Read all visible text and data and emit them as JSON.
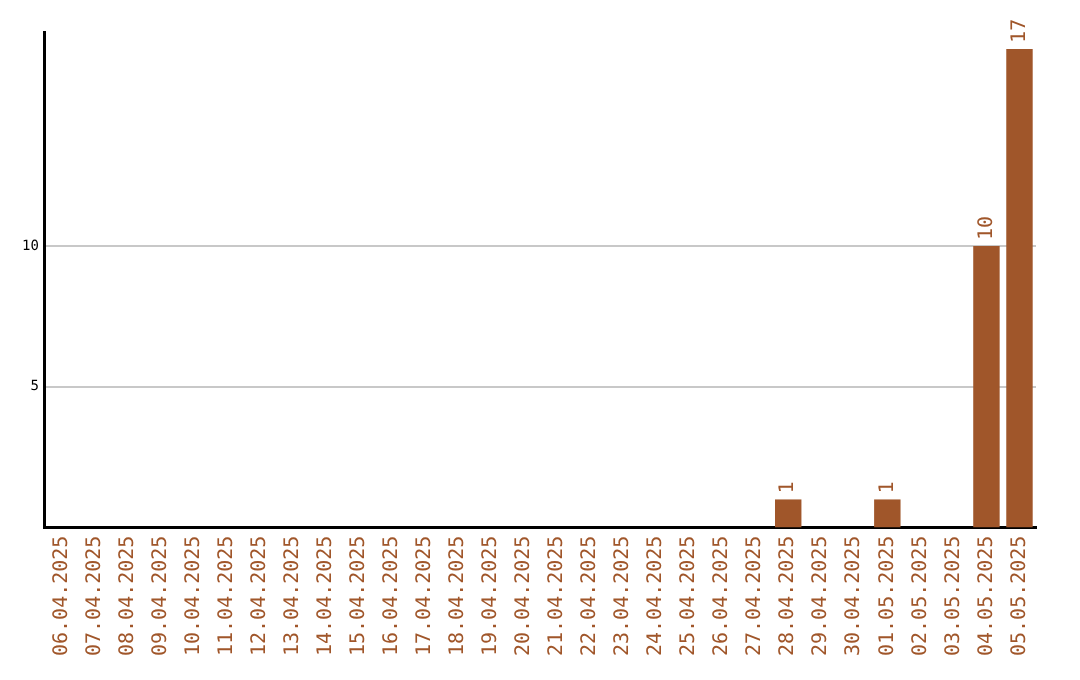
{
  "chart_data": {
    "type": "bar",
    "categories": [
      "06.04.2025",
      "07.04.2025",
      "08.04.2025",
      "09.04.2025",
      "10.04.2025",
      "11.04.2025",
      "12.04.2025",
      "13.04.2025",
      "14.04.2025",
      "15.04.2025",
      "16.04.2025",
      "17.04.2025",
      "18.04.2025",
      "19.04.2025",
      "20.04.2025",
      "21.04.2025",
      "22.04.2025",
      "23.04.2025",
      "24.04.2025",
      "25.04.2025",
      "26.04.2025",
      "27.04.2025",
      "28.04.2025",
      "29.04.2025",
      "30.04.2025",
      "01.05.2025",
      "02.05.2025",
      "03.05.2025",
      "04.05.2025",
      "05.05.2025"
    ],
    "values": [
      0,
      0,
      0,
      0,
      0,
      0,
      0,
      0,
      0,
      0,
      0,
      0,
      0,
      0,
      0,
      0,
      0,
      0,
      0,
      0,
      0,
      0,
      1,
      0,
      0,
      1,
      0,
      0,
      10,
      17
    ],
    "value_labels": [
      null,
      null,
      null,
      null,
      null,
      null,
      null,
      null,
      null,
      null,
      null,
      null,
      null,
      null,
      null,
      null,
      null,
      null,
      null,
      null,
      null,
      null,
      "1",
      null,
      null,
      "1",
      null,
      null,
      "10",
      "17"
    ],
    "color": "#a0562a",
    "ylim": [
      0,
      17.6
    ],
    "yticks": [
      5,
      10
    ],
    "grid": "y",
    "legend": false
  }
}
